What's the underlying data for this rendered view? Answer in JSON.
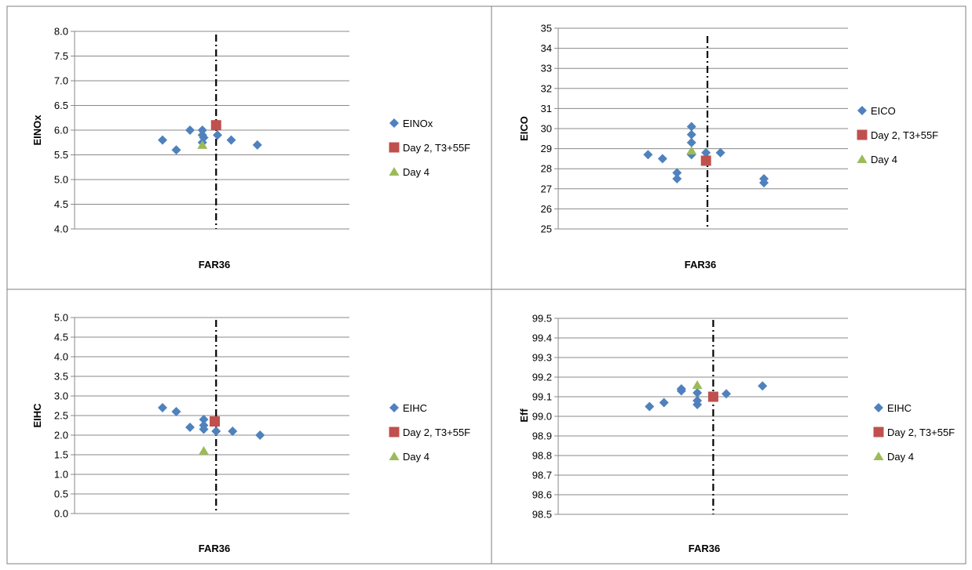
{
  "colors": {
    "series_1": "#4F81BD",
    "series_2": "#C0504D",
    "series_3": "#9BBB59",
    "grid": "#888888",
    "border": "#7f7f7f"
  },
  "chart_data": [
    {
      "type": "scatter",
      "xlabel": "FAR36",
      "ylabel": "EINOx",
      "ylim": [
        4.0,
        8.0
      ],
      "ytick_step": 0.5,
      "ytick_decimals": 1,
      "grid": "horizontal",
      "legend_position": "right",
      "x_range": [
        0,
        10
      ],
      "vline_x": 5.15,
      "series": [
        {
          "name": "EINOx",
          "marker": "diamond",
          "points": [
            [
              3.2,
              5.8
            ],
            [
              3.7,
              5.6
            ],
            [
              4.2,
              6.0
            ],
            [
              4.65,
              5.75
            ],
            [
              4.65,
              5.9
            ],
            [
              4.65,
              6.0
            ],
            [
              4.7,
              5.85
            ],
            [
              5.2,
              5.9
            ],
            [
              5.7,
              5.8
            ],
            [
              6.65,
              5.7
            ]
          ]
        },
        {
          "name": "Day 2, T3+55F",
          "marker": "square",
          "points": [
            [
              5.15,
              6.1
            ]
          ]
        },
        {
          "name": "Day 4",
          "marker": "triangle",
          "points": [
            [
              4.65,
              5.7
            ]
          ]
        }
      ]
    },
    {
      "type": "scatter",
      "xlabel": "FAR36",
      "ylabel": "EICO",
      "ylim": [
        25,
        35
      ],
      "ytick_step": 1,
      "ytick_decimals": 0,
      "grid": "horizontal",
      "legend_position": "right",
      "x_range": [
        0,
        10
      ],
      "vline_x": 5.15,
      "series": [
        {
          "name": "EICO",
          "marker": "diamond",
          "points": [
            [
              3.1,
              28.7
            ],
            [
              3.6,
              28.5
            ],
            [
              4.1,
              27.8
            ],
            [
              4.1,
              27.5
            ],
            [
              4.6,
              29.7
            ],
            [
              4.6,
              30.1
            ],
            [
              4.6,
              29.3
            ],
            [
              4.6,
              28.7
            ],
            [
              5.1,
              28.8
            ],
            [
              5.6,
              28.8
            ],
            [
              7.1,
              27.5
            ],
            [
              7.1,
              27.3
            ]
          ]
        },
        {
          "name": "Day 2, T3+55F",
          "marker": "square",
          "points": [
            [
              5.1,
              28.4
            ]
          ]
        },
        {
          "name": "Day 4",
          "marker": "triangle",
          "points": [
            [
              4.6,
              28.9
            ]
          ]
        }
      ]
    },
    {
      "type": "scatter",
      "xlabel": "FAR36",
      "ylabel": "EIHC",
      "ylim": [
        0.0,
        5.0
      ],
      "ytick_step": 0.5,
      "ytick_decimals": 1,
      "grid": "horizontal",
      "legend_position": "right",
      "x_range": [
        0,
        10
      ],
      "vline_x": 5.15,
      "series": [
        {
          "name": "EIHC",
          "marker": "diamond",
          "points": [
            [
              3.2,
              2.7
            ],
            [
              3.7,
              2.6
            ],
            [
              4.2,
              2.2
            ],
            [
              4.7,
              2.15
            ],
            [
              4.7,
              2.25
            ],
            [
              4.7,
              2.4
            ],
            [
              5.15,
              2.1
            ],
            [
              5.75,
              2.1
            ],
            [
              6.75,
              2.0
            ]
          ]
        },
        {
          "name": "Day 2, T3+55F",
          "marker": "square",
          "points": [
            [
              5.1,
              2.35
            ]
          ]
        },
        {
          "name": "Day 4",
          "marker": "triangle",
          "points": [
            [
              4.7,
              1.6
            ]
          ]
        }
      ]
    },
    {
      "type": "scatter",
      "xlabel": "FAR36",
      "ylabel": "Eff",
      "ylim": [
        98.5,
        99.5
      ],
      "ytick_step": 0.1,
      "ytick_decimals": 1,
      "grid": "horizontal",
      "legend_position": "right",
      "x_range": [
        0,
        10
      ],
      "vline_x": 5.35,
      "series": [
        {
          "name": "EIHC",
          "marker": "diamond",
          "points": [
            [
              3.15,
              99.05
            ],
            [
              3.65,
              99.07
            ],
            [
              4.25,
              99.13
            ],
            [
              4.25,
              99.14
            ],
            [
              4.8,
              99.12
            ],
            [
              4.8,
              99.08
            ],
            [
              4.8,
              99.06
            ],
            [
              5.8,
              99.115
            ],
            [
              7.05,
              99.155
            ]
          ]
        },
        {
          "name": "Day 2, T3+55F",
          "marker": "square",
          "points": [
            [
              5.35,
              99.1
            ]
          ]
        },
        {
          "name": "Day 4",
          "marker": "triangle",
          "points": [
            [
              4.8,
              99.16
            ]
          ]
        }
      ]
    }
  ]
}
